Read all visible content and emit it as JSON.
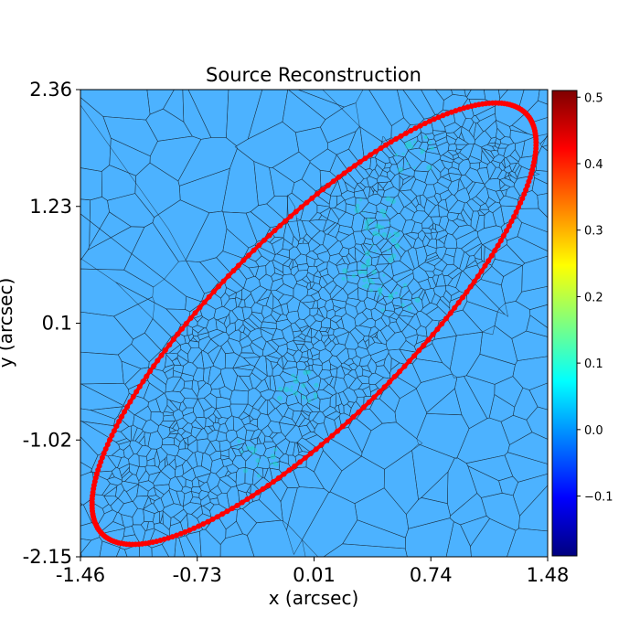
{
  "chart_data": {
    "type": "heatmap",
    "title": "Source Reconstruction",
    "xlabel": "x (arcsec)",
    "ylabel": "y (arcsec)",
    "xlim": [
      -1.46,
      1.48
    ],
    "ylim": [
      -2.15,
      2.36
    ],
    "xticks": [
      "-1.46",
      "-0.73",
      "0.01",
      "0.74",
      "1.48"
    ],
    "yticks": [
      "2.36",
      "1.23",
      "0.1",
      "-1.02",
      "-2.15"
    ],
    "colorbar": {
      "range": [
        -0.19,
        0.51
      ],
      "ticks": [
        "0.5",
        "0.4",
        "0.3",
        "0.2",
        "0.1",
        "0.0",
        "−0.1"
      ],
      "tick_values": [
        0.5,
        0.4,
        0.3,
        0.2,
        0.1,
        0.0,
        -0.1
      ],
      "colormap": "jet"
    },
    "background_value": 0.08,
    "mesh": "voronoi",
    "caustic_color": "#ff0000",
    "caustic_ellipse": {
      "center": [
        0.01,
        0.1
      ],
      "semi_major": 2.45,
      "semi_minor": 0.7,
      "angle_deg": 59
    }
  }
}
